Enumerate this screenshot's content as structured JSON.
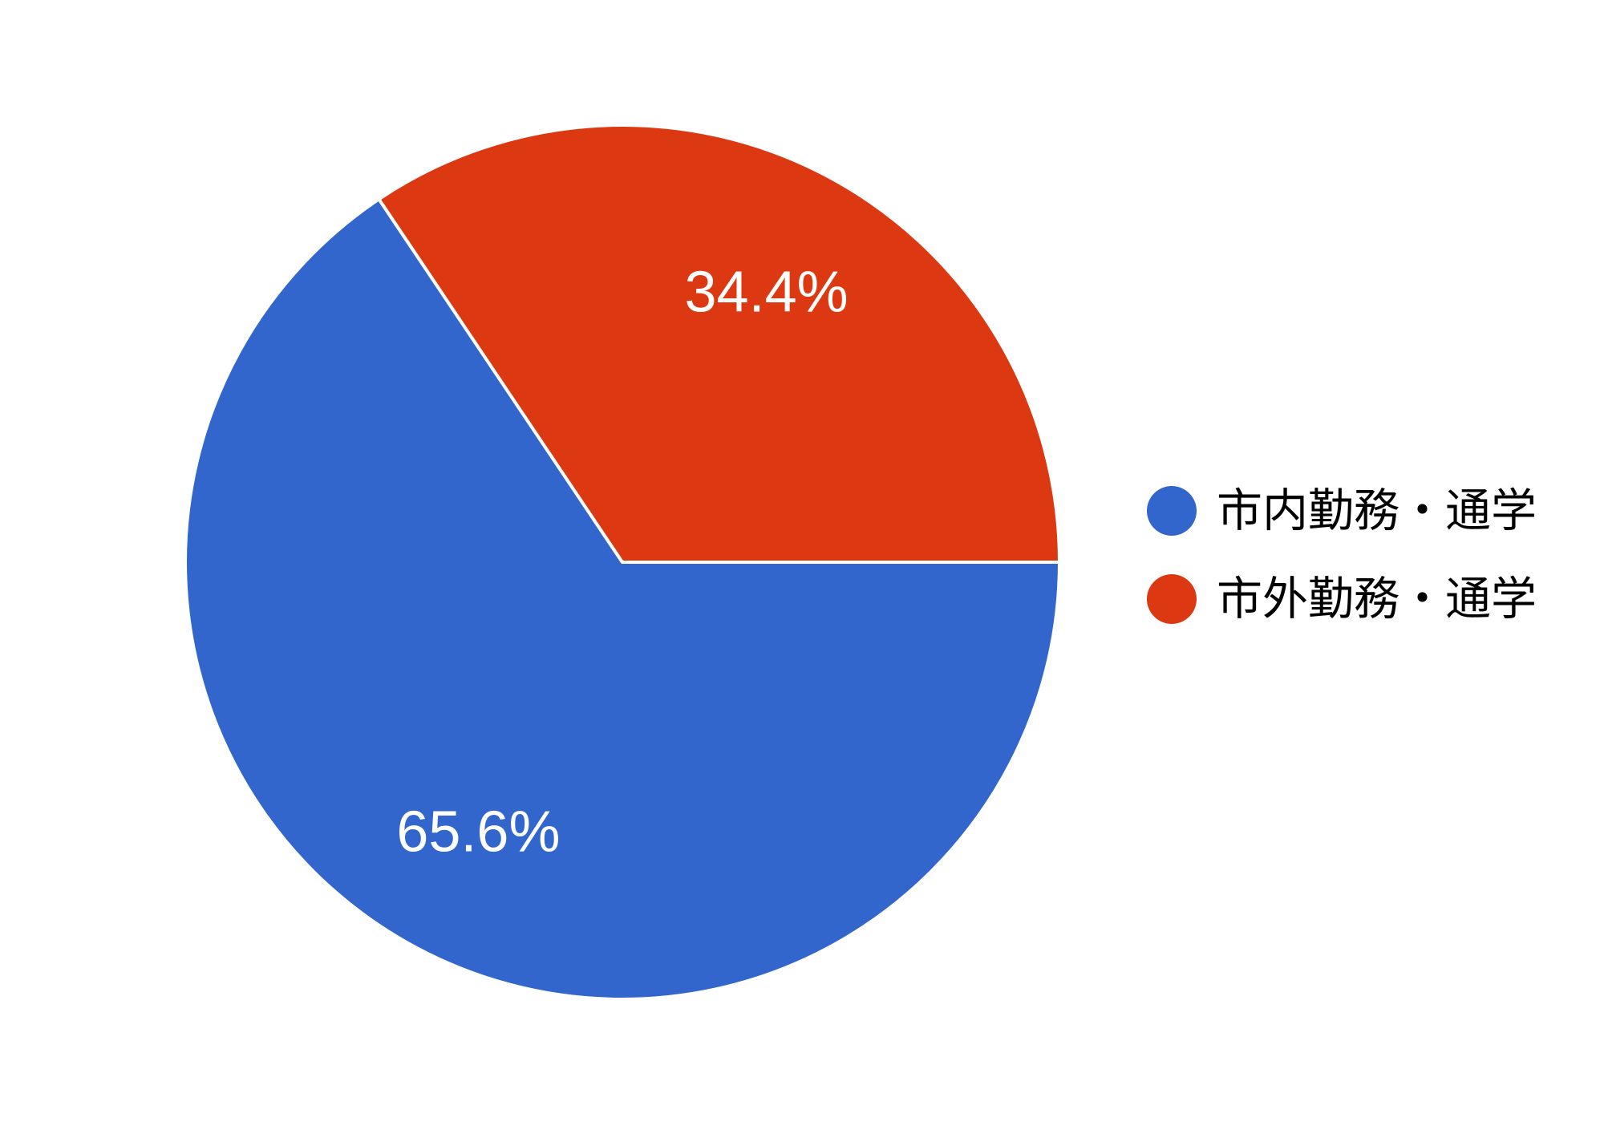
{
  "chart_data": {
    "type": "pie",
    "title": "",
    "legend_position": "right",
    "start_angle_deg": 0,
    "direction": "clockwise",
    "background": "#ffffff",
    "slice_border_color": "#ffffff",
    "slice_label_color": "#ffffff",
    "series": [
      {
        "label": "市内勤務・通学",
        "value": 65.6,
        "pct_label": "65.6%",
        "color": "#3366cc"
      },
      {
        "label": "市外勤務・通学",
        "value": 34.4,
        "pct_label": "34.4%",
        "color": "#dc3912"
      }
    ]
  }
}
